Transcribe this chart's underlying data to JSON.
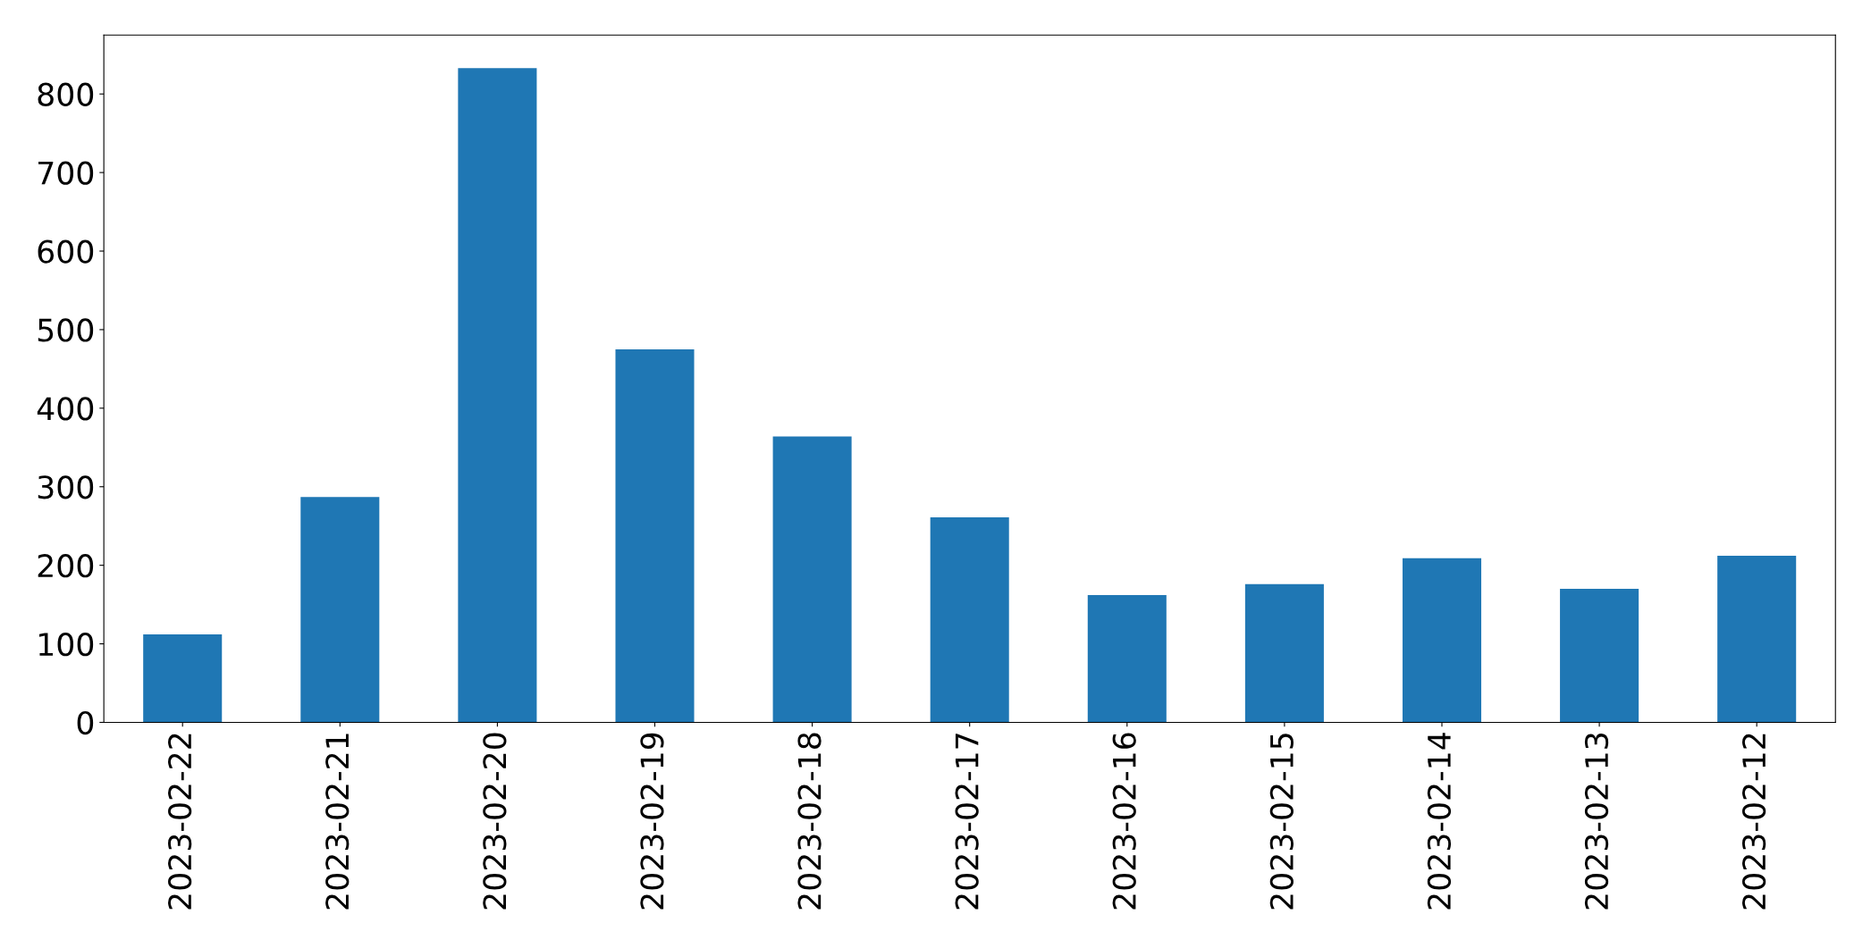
{
  "chart_data": {
    "type": "bar",
    "categories": [
      "2023-02-22",
      "2023-02-21",
      "2023-02-20",
      "2023-02-19",
      "2023-02-18",
      "2023-02-17",
      "2023-02-16",
      "2023-02-15",
      "2023-02-14",
      "2023-02-13",
      "2023-02-12"
    ],
    "values": [
      112,
      287,
      833,
      475,
      364,
      261,
      162,
      176,
      209,
      170,
      212
    ],
    "color": "#1f77b4",
    "ylim": [
      0,
      875
    ],
    "yticks": [
      0,
      100,
      200,
      300,
      400,
      500,
      600,
      700,
      800
    ],
    "grid": false,
    "legend": false
  }
}
